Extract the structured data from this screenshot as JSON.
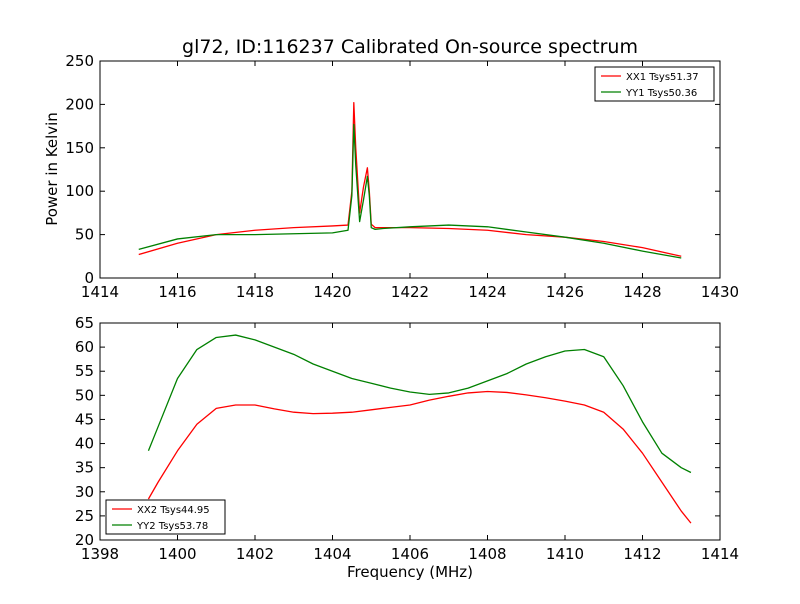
{
  "figure": {
    "title": "gl72, ID:116237 Calibrated On-source spectrum",
    "xlabel_bottom": "Frequency (MHz)"
  },
  "colors": {
    "red": "#ff0000",
    "green": "#008000",
    "axis": "#000000"
  },
  "chart_data": [
    {
      "type": "line",
      "title": "gl72, ID:116237 Calibrated On-source spectrum",
      "xlabel": "",
      "ylabel": "Power in Kelvin",
      "xlim": [
        1414,
        1430
      ],
      "ylim": [
        0,
        250
      ],
      "xticks": [
        1414,
        1416,
        1418,
        1420,
        1422,
        1424,
        1426,
        1428,
        1430
      ],
      "yticks": [
        0,
        50,
        100,
        150,
        200,
        250
      ],
      "grid": false,
      "legend_position": "top-right",
      "series": [
        {
          "name": "XX1 Tsys51.37",
          "color": "#ff0000",
          "x": [
            1415.0,
            1416.0,
            1417.0,
            1418.0,
            1419.0,
            1420.0,
            1420.4,
            1420.5,
            1420.55,
            1420.6,
            1420.7,
            1420.8,
            1420.9,
            1420.95,
            1421.0,
            1421.1,
            1421.3,
            1422.0,
            1423.0,
            1424.0,
            1425.0,
            1426.0,
            1427.0,
            1428.0,
            1429.0
          ],
          "y": [
            27,
            40,
            50,
            55,
            58,
            60,
            61,
            100,
            202,
            150,
            75,
            105,
            127,
            100,
            62,
            58,
            58,
            58,
            57,
            55,
            50,
            47,
            42,
            35,
            25
          ]
        },
        {
          "name": "YY1 Tsys50.36",
          "color": "#008000",
          "x": [
            1415.0,
            1416.0,
            1417.0,
            1418.0,
            1419.0,
            1420.0,
            1420.4,
            1420.5,
            1420.55,
            1420.6,
            1420.7,
            1420.8,
            1420.9,
            1420.95,
            1421.0,
            1421.1,
            1421.3,
            1422.0,
            1423.0,
            1424.0,
            1425.0,
            1426.0,
            1427.0,
            1428.0,
            1429.0
          ],
          "y": [
            33,
            45,
            50,
            50,
            51,
            52,
            55,
            95,
            177,
            130,
            65,
            90,
            117,
            95,
            58,
            56,
            57,
            59,
            61,
            59,
            53,
            47,
            40,
            31,
            23
          ]
        }
      ]
    },
    {
      "type": "line",
      "title": "",
      "xlabel": "Frequency (MHz)",
      "ylabel": "",
      "xlim": [
        1398,
        1414
      ],
      "ylim": [
        20,
        65
      ],
      "xticks": [
        1398,
        1400,
        1402,
        1404,
        1406,
        1408,
        1410,
        1412,
        1414
      ],
      "yticks": [
        20,
        25,
        30,
        35,
        40,
        45,
        50,
        55,
        60,
        65
      ],
      "grid": false,
      "legend_position": "bottom-left",
      "series": [
        {
          "name": "XX2 Tsys44.95",
          "color": "#ff0000",
          "x": [
            1399.25,
            1399.5,
            1400.0,
            1400.5,
            1401.0,
            1401.5,
            1402.0,
            1402.5,
            1403.0,
            1403.5,
            1404.0,
            1404.5,
            1405.0,
            1405.5,
            1406.0,
            1406.5,
            1407.0,
            1407.5,
            1408.0,
            1408.5,
            1409.0,
            1409.5,
            1410.0,
            1410.5,
            1411.0,
            1411.5,
            1412.0,
            1412.5,
            1413.0,
            1413.25
          ],
          "y": [
            28.5,
            32,
            38.5,
            44,
            47.3,
            48,
            48,
            47.2,
            46.5,
            46.2,
            46.3,
            46.5,
            47,
            47.5,
            48,
            49,
            49.8,
            50.5,
            50.8,
            50.6,
            50.1,
            49.5,
            48.8,
            48,
            46.5,
            43,
            38,
            32,
            26,
            23.5
          ]
        },
        {
          "name": "YY2 Tsys53.78",
          "color": "#008000",
          "x": [
            1399.25,
            1399.5,
            1400.0,
            1400.5,
            1401.0,
            1401.5,
            1402.0,
            1402.5,
            1403.0,
            1403.5,
            1404.0,
            1404.5,
            1405.0,
            1405.5,
            1406.0,
            1406.5,
            1407.0,
            1407.5,
            1408.0,
            1408.5,
            1409.0,
            1409.5,
            1410.0,
            1410.5,
            1411.0,
            1411.5,
            1412.0,
            1412.5,
            1413.0,
            1413.25
          ],
          "y": [
            38.5,
            43.5,
            53.5,
            59.5,
            62,
            62.5,
            61.5,
            60,
            58.5,
            56.5,
            55,
            53.5,
            52.5,
            51.5,
            50.7,
            50.2,
            50.5,
            51.5,
            53,
            54.5,
            56.5,
            58,
            59.2,
            59.5,
            58,
            52,
            44.5,
            38,
            35,
            34
          ]
        }
      ]
    }
  ]
}
